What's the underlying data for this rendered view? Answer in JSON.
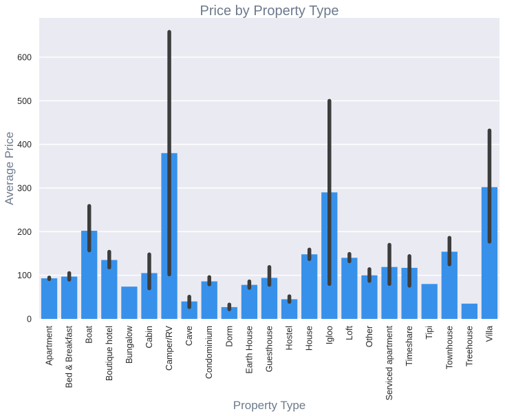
{
  "chart_data": {
    "type": "bar",
    "title": "Price by Property Type",
    "xlabel": "Property Type",
    "ylabel": "Average Price",
    "ylim": [
      0,
      690
    ],
    "yticks": [
      0,
      100,
      200,
      300,
      400,
      500,
      600
    ],
    "grid": true,
    "bar_color": "#3791ea",
    "errorbar_color": "#3d3d3d",
    "background_color": "#eaeaf2",
    "categories": [
      "Apartment",
      "Bed & Breakfast",
      "Boat",
      "Boutique hotel",
      "Bungalow",
      "Cabin",
      "Camper/RV",
      "Cave",
      "Condominium",
      "Dorm",
      "Earth House",
      "Guesthouse",
      "Hostel",
      "House",
      "Igloo",
      "Loft",
      "Other",
      "Serviced apartment",
      "Timeshare",
      "Tipi",
      "Townhouse",
      "Treehouse",
      "Villa"
    ],
    "values": [
      93,
      97,
      202,
      135,
      74,
      105,
      380,
      40,
      86,
      27,
      78,
      94,
      45,
      148,
      290,
      140,
      100,
      119,
      117,
      80,
      154,
      35,
      302
    ],
    "ci_low": [
      91,
      90,
      157,
      118,
      null,
      70,
      102,
      27,
      79,
      22,
      71,
      78,
      39,
      137,
      80,
      132,
      87,
      80,
      76,
      null,
      125,
      null,
      177
    ],
    "ci_high": [
      95,
      105,
      259,
      154,
      null,
      148,
      658,
      51,
      96,
      33,
      86,
      119,
      52,
      159,
      500,
      149,
      114,
      170,
      144,
      null,
      186,
      null,
      432
    ]
  }
}
